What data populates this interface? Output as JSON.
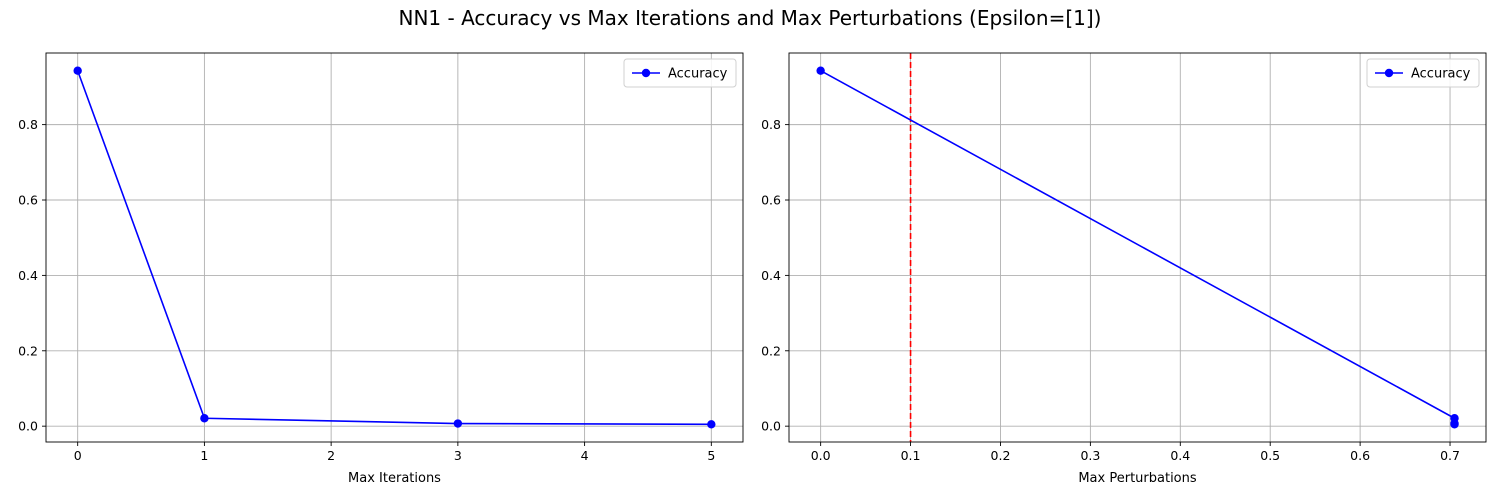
{
  "figure": {
    "suptitle": "NN1 - Accuracy vs Max Iterations and Max Perturbations (Epsilon=[1])"
  },
  "chart_data": [
    {
      "type": "line",
      "title": "",
      "xlabel": "Max Iterations",
      "ylabel": "",
      "x": [
        0,
        1,
        3,
        5
      ],
      "series": [
        {
          "name": "Accuracy",
          "values": [
            0.943,
            0.021,
            0.007,
            0.005
          ],
          "color": "#0000ff",
          "marker": "circle"
        }
      ],
      "xlim": [
        -0.25,
        5.25
      ],
      "ylim": [
        -0.042,
        0.99
      ],
      "xticks": [
        0,
        1,
        2,
        3,
        4,
        5
      ],
      "xtick_labels": [
        "0",
        "1",
        "2",
        "3",
        "4",
        "5"
      ],
      "yticks": [
        0.0,
        0.2,
        0.4,
        0.6,
        0.8
      ],
      "ytick_labels": [
        "0.0",
        "0.2",
        "0.4",
        "0.6",
        "0.8"
      ],
      "grid": true,
      "legend": "top-right",
      "vlines": []
    },
    {
      "type": "line",
      "title": "",
      "xlabel": "Max Perturbations",
      "ylabel": "",
      "x": [
        0.0,
        0.705,
        0.705,
        0.705
      ],
      "series": [
        {
          "name": "Accuracy",
          "values": [
            0.943,
            0.021,
            0.007,
            0.005
          ],
          "color": "#0000ff",
          "marker": "circle"
        }
      ],
      "xlim": [
        -0.0352,
        0.74
      ],
      "ylim": [
        -0.042,
        0.99
      ],
      "xticks": [
        0.0,
        0.1,
        0.2,
        0.3,
        0.4,
        0.5,
        0.6,
        0.7
      ],
      "xtick_labels": [
        "0.0",
        "0.1",
        "0.2",
        "0.3",
        "0.4",
        "0.5",
        "0.6",
        "0.7"
      ],
      "yticks": [
        0.0,
        0.2,
        0.4,
        0.6,
        0.8
      ],
      "ytick_labels": [
        "0.0",
        "0.2",
        "0.4",
        "0.6",
        "0.8"
      ],
      "grid": true,
      "legend": "top-right",
      "vlines": [
        {
          "x": 0.1,
          "color": "#ff0000",
          "style": "dashed"
        }
      ]
    }
  ]
}
